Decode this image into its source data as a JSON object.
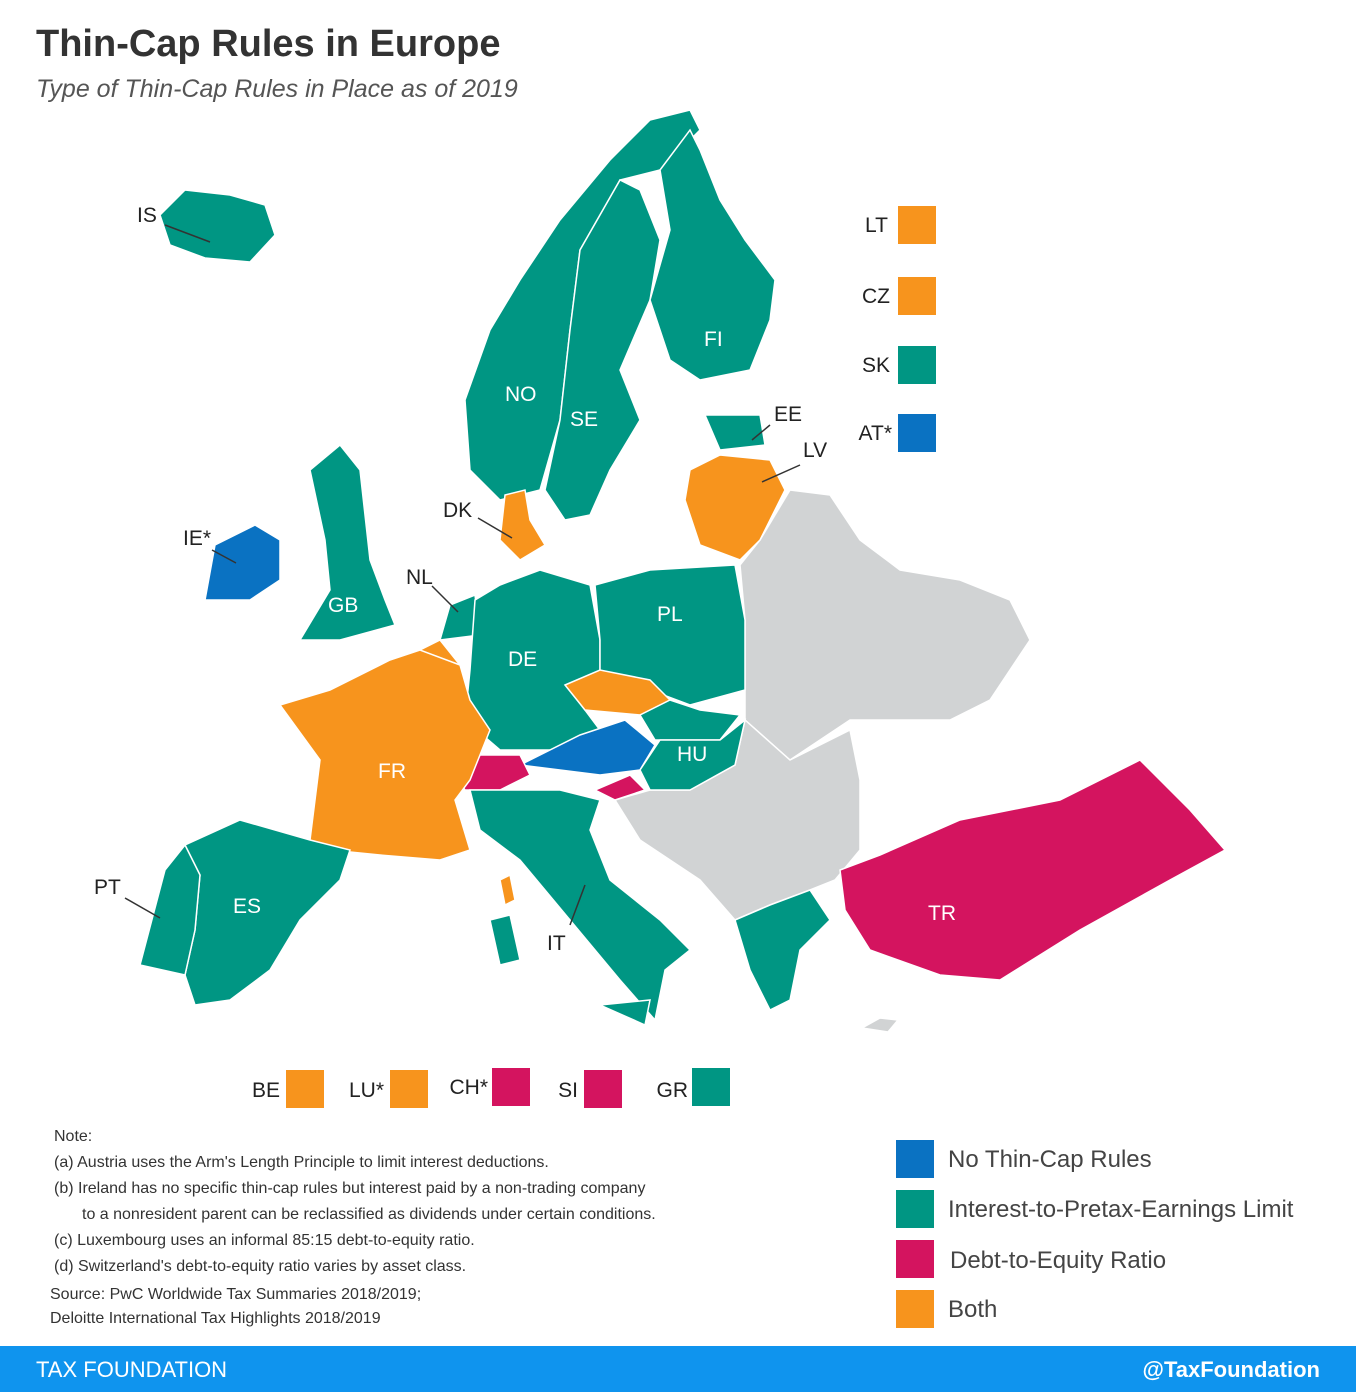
{
  "header": {
    "title": "Thin-Cap Rules in Europe",
    "subtitle": "Type of Thin-Cap Rules in Place as of 2019"
  },
  "countries": [
    {
      "code": "IS",
      "color": "#009683"
    },
    {
      "code": "NO",
      "color": "#009683"
    },
    {
      "code": "SE",
      "color": "#009683"
    },
    {
      "code": "FI",
      "color": "#009683"
    },
    {
      "code": "EE",
      "color": "#009683"
    },
    {
      "code": "LV",
      "color": "#f7941d"
    },
    {
      "code": "DK",
      "color": "#f7941d"
    },
    {
      "code": "IE*",
      "color": "#0a72c2"
    },
    {
      "code": "GB",
      "color": "#009683"
    },
    {
      "code": "NL",
      "color": "#009683"
    },
    {
      "code": "DE",
      "color": "#009683"
    },
    {
      "code": "PL",
      "color": "#009683"
    },
    {
      "code": "FR",
      "color": "#f7941d"
    },
    {
      "code": "HU",
      "color": "#009683"
    },
    {
      "code": "PT",
      "color": "#009683"
    },
    {
      "code": "ES",
      "color": "#009683"
    },
    {
      "code": "IT",
      "color": "#009683"
    },
    {
      "code": "TR",
      "color": "#d4145f"
    }
  ],
  "callouts": [
    {
      "code": "LT",
      "color": "#f7941d"
    },
    {
      "code": "CZ",
      "color": "#f7941d"
    },
    {
      "code": "SK",
      "color": "#009683"
    },
    {
      "code": "AT*",
      "color": "#0a72c2"
    },
    {
      "code": "BE",
      "color": "#f7941d"
    },
    {
      "code": "LU*",
      "color": "#f7941d"
    },
    {
      "code": "CH*",
      "color": "#d4145f"
    },
    {
      "code": "SI",
      "color": "#d4145f"
    },
    {
      "code": "GR",
      "color": "#009683"
    }
  ],
  "legend": [
    {
      "label": "No Thin-Cap Rules",
      "color": "#0a72c2"
    },
    {
      "label": "Interest-to-Pretax-Earnings Limit",
      "color": "#009683"
    },
    {
      "label": "Debt-to-Equity Ratio",
      "color": "#d4145f"
    },
    {
      "label": "Both",
      "color": "#f7941d"
    }
  ],
  "notes": {
    "heading": "Note:",
    "items": [
      "(a) Austria uses the Arm's Length Principle to limit interest deductions.",
      "(b) Ireland has no specific thin-cap rules but interest paid by a non-trading company",
      "to a nonresident parent can be reclassified as dividends under certain conditions.",
      "(c) Luxembourg uses an informal 85:15 debt-to-equity ratio.",
      "(d) Switzerland's debt-to-equity ratio varies by asset class."
    ],
    "source": [
      "Source: PwC Worldwide Tax Summaries 2018/2019;",
      "Deloitte International Tax Highlights 2018/2019"
    ]
  },
  "footer": {
    "brand": "TAX FOUNDATION",
    "handle": "@TaxFoundation"
  }
}
